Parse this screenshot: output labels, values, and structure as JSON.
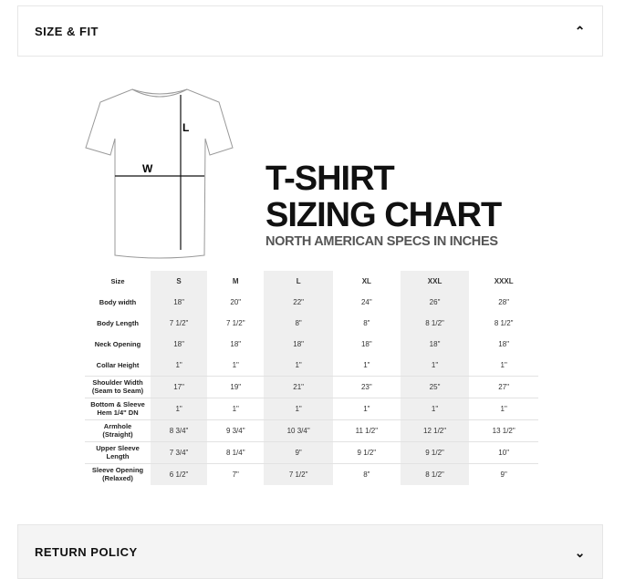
{
  "accordion": [
    {
      "title": "SIZE & FIT",
      "icon": "chevron-up-icon"
    },
    {
      "title": "RETURN POLICY",
      "icon": "chevron-down-icon"
    }
  ],
  "chart": {
    "title_line1": "T-SHIRT",
    "title_line2": "SIZING CHART",
    "subtitle": "NORTH AMERICAN SPECS IN INCHES",
    "diagram_labels": {
      "width": "W",
      "length": "L"
    },
    "header": [
      "Size",
      "S",
      "M",
      "L",
      "XL",
      "XXL",
      "XXXL"
    ],
    "rows": [
      {
        "label": [
          "Body width"
        ],
        "values": [
          "18\"",
          "20\"",
          "22\"",
          "24\"",
          "26\"",
          "28\""
        ]
      },
      {
        "label": [
          "Body Length"
        ],
        "values": [
          "7 1/2\"",
          "7 1/2\"",
          "8\"",
          "8\"",
          "8 1/2\"",
          "8 1/2\""
        ]
      },
      {
        "label": [
          "Neck Opening"
        ],
        "values": [
          "18\"",
          "18\"",
          "18\"",
          "18\"",
          "18\"",
          "18\""
        ]
      },
      {
        "label": [
          "Collar Height"
        ],
        "values": [
          "1\"",
          "1\"",
          "1\"",
          "1\"",
          "1\"",
          "1\""
        ]
      },
      {
        "label": [
          "Shoulder Width",
          "(Seam to Seam)"
        ],
        "values": [
          "17\"",
          "19\"",
          "21\"",
          "23\"",
          "25\"",
          "27\""
        ]
      },
      {
        "label": [
          "Bottom & Sleeve",
          "Hem 1/4\" DN"
        ],
        "values": [
          "1\"",
          "1\"",
          "1\"",
          "1\"",
          "1\"",
          "1\""
        ]
      },
      {
        "label": [
          "Armhole",
          "(Straight)"
        ],
        "values": [
          "8 3/4\"",
          "9 3/4\"",
          "10 3/4\"",
          "11 1/2\"",
          "12 1/2\"",
          "13 1/2\""
        ]
      },
      {
        "label": [
          "Upper Sleeve",
          "Length"
        ],
        "values": [
          "7 3/4\"",
          "8 1/4\"",
          "9\"",
          "9 1/2\"",
          "9 1/2\"",
          "10\""
        ]
      },
      {
        "label": [
          "Sleeve Opening",
          "(Relaxed)"
        ],
        "values": [
          "6 1/2\"",
          "7\"",
          "7 1/2\"",
          "8\"",
          "8 1/2\"",
          "9\""
        ]
      }
    ]
  }
}
